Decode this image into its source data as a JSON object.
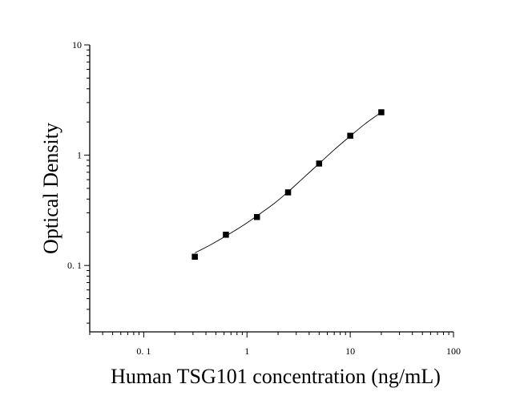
{
  "chart_data": {
    "type": "scatter",
    "xlabel": "Human TSG101 concentration (ng/mL)",
    "ylabel": "Optical Density",
    "x_scale": "log",
    "y_scale": "log",
    "xlim": [
      0.03,
      100
    ],
    "ylim": [
      0.025,
      10
    ],
    "x_ticks": [
      {
        "value": 0.1,
        "label": "0. 1"
      },
      {
        "value": 1,
        "label": "1"
      },
      {
        "value": 10,
        "label": "10"
      },
      {
        "value": 100,
        "label": "100"
      }
    ],
    "y_ticks": [
      {
        "value": 0.1,
        "label": "0. 1"
      },
      {
        "value": 1,
        "label": "1"
      },
      {
        "value": 10,
        "label": "10"
      }
    ],
    "grid": false,
    "series": [
      {
        "marker": "square",
        "color": "#000000",
        "points": [
          {
            "x": 0.3125,
            "y": 0.12
          },
          {
            "x": 0.625,
            "y": 0.19
          },
          {
            "x": 1.25,
            "y": 0.275
          },
          {
            "x": 2.5,
            "y": 0.46
          },
          {
            "x": 5,
            "y": 0.84
          },
          {
            "x": 10,
            "y": 1.5
          },
          {
            "x": 20,
            "y": 2.45
          }
        ]
      }
    ],
    "fit_curve": {
      "color": "#000000",
      "x": [
        0.3125,
        0.45,
        0.625,
        0.9,
        1.25,
        1.8,
        2.5,
        3.5,
        5,
        7,
        10,
        14,
        20
      ],
      "y": [
        0.13,
        0.155,
        0.185,
        0.228,
        0.282,
        0.36,
        0.465,
        0.62,
        0.84,
        1.12,
        1.49,
        1.93,
        2.45
      ]
    }
  }
}
